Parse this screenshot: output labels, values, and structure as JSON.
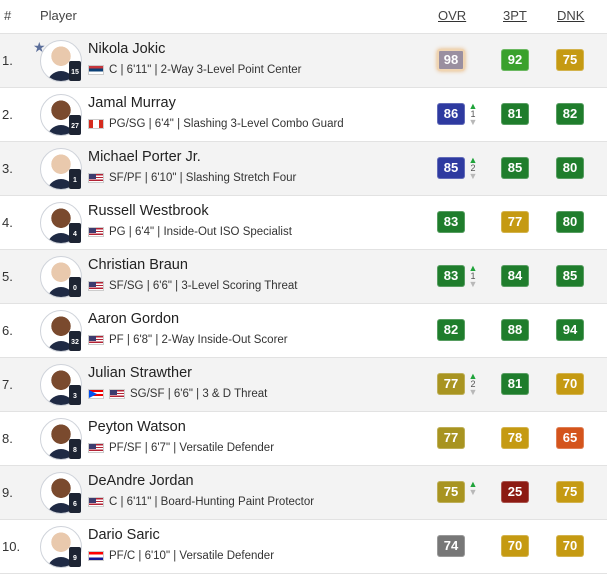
{
  "colors": {
    "navy": "#2e3aa0",
    "green_dark": "#1f7d2c",
    "green": "#3aa12c",
    "gold": "#c59a12",
    "olive": "#a89421",
    "orange": "#d4541c",
    "maroon": "#8c1a12",
    "gray": "#777777",
    "lavender": "#9a8fa0"
  },
  "header": {
    "num": "#",
    "player": "Player",
    "ovr": "OVR",
    "three_pt": "3PT",
    "dnk": "DNK"
  },
  "players": [
    {
      "rank": "1.",
      "name": "Nikola Jokic",
      "flags": [
        "rs"
      ],
      "info": "C | 6'11\" | 2-Way 3-Level Point Center",
      "jersey": "15",
      "ovr": "98",
      "ovr_color": "lavender",
      "three_pt": "92",
      "three_color": "green",
      "dnk": "75",
      "dnk_color": "gold",
      "trend": "",
      "star": true
    },
    {
      "rank": "2.",
      "name": "Jamal Murray",
      "flags": [
        "ca"
      ],
      "info": "PG/SG | 6'4\" | Slashing 3-Level Combo Guard",
      "jersey": "27",
      "ovr": "86",
      "ovr_color": "navy",
      "three_pt": "81",
      "three_color": "green_dark",
      "dnk": "82",
      "dnk_color": "green_dark",
      "trend": "1"
    },
    {
      "rank": "3.",
      "name": "Michael Porter Jr.",
      "flags": [
        "us"
      ],
      "info": "SF/PF | 6'10\" | Slashing Stretch Four",
      "jersey": "1",
      "ovr": "85",
      "ovr_color": "navy",
      "three_pt": "85",
      "three_color": "green_dark",
      "dnk": "80",
      "dnk_color": "green_dark",
      "trend": "2"
    },
    {
      "rank": "4.",
      "name": "Russell Westbrook",
      "flags": [
        "us"
      ],
      "info": "PG | 6'4\" | Inside-Out ISO Specialist",
      "jersey": "4",
      "ovr": "83",
      "ovr_color": "green_dark",
      "three_pt": "77",
      "three_color": "gold",
      "dnk": "80",
      "dnk_color": "green_dark",
      "trend": ""
    },
    {
      "rank": "5.",
      "name": "Christian Braun",
      "flags": [
        "us"
      ],
      "info": "SF/SG | 6'6\" | 3-Level Scoring Threat",
      "jersey": "0",
      "ovr": "83",
      "ovr_color": "green_dark",
      "three_pt": "84",
      "three_color": "green_dark",
      "dnk": "85",
      "dnk_color": "green_dark",
      "trend": "1"
    },
    {
      "rank": "6.",
      "name": "Aaron Gordon",
      "flags": [
        "us"
      ],
      "info": "PF | 6'8\" | 2-Way Inside-Out Scorer",
      "jersey": "32",
      "ovr": "82",
      "ovr_color": "green_dark",
      "three_pt": "88",
      "three_color": "green_dark",
      "dnk": "94",
      "dnk_color": "green_dark",
      "trend": ""
    },
    {
      "rank": "7.",
      "name": "Julian Strawther",
      "flags": [
        "pr",
        "us"
      ],
      "info": "SG/SF | 6'6\" | 3 & D Threat",
      "jersey": "3",
      "ovr": "77",
      "ovr_color": "olive",
      "three_pt": "81",
      "three_color": "green_dark",
      "dnk": "70",
      "dnk_color": "gold",
      "trend": "2"
    },
    {
      "rank": "8.",
      "name": "Peyton Watson",
      "flags": [
        "us"
      ],
      "info": "PF/SF | 6'7\" | Versatile Defender",
      "jersey": "8",
      "ovr": "77",
      "ovr_color": "olive",
      "three_pt": "78",
      "three_color": "gold",
      "dnk": "65",
      "dnk_color": "orange",
      "trend": ""
    },
    {
      "rank": "9.",
      "name": "DeAndre Jordan",
      "flags": [
        "us"
      ],
      "info": "C | 6'11\" | Board-Hunting Paint Protector",
      "jersey": "6",
      "ovr": "75",
      "ovr_color": "olive",
      "three_pt": "25",
      "three_color": "maroon",
      "dnk": "75",
      "dnk_color": "gold",
      "trend": "up"
    },
    {
      "rank": "10.",
      "name": "Dario Saric",
      "flags": [
        "hr"
      ],
      "info": "PF/C | 6'10\" | Versatile Defender",
      "jersey": "9",
      "ovr": "74",
      "ovr_color": "gray",
      "three_pt": "70",
      "three_color": "gold",
      "dnk": "70",
      "dnk_color": "gold",
      "trend": ""
    }
  ]
}
